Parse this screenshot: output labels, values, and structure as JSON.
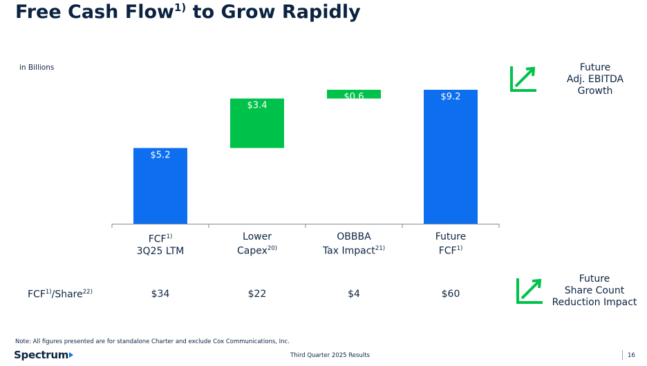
{
  "header": {
    "title_main": "Free Cash Flow",
    "title_sup": "1)",
    "title_tail": " to Grow Rapidly"
  },
  "unit_label": "in Billions",
  "chart_data": {
    "type": "bar",
    "subtype": "waterfall",
    "title": "Free Cash Flow1) to Grow Rapidly",
    "unit": "in Billions",
    "categories": [
      {
        "line1": "FCF",
        "line1_sup": "1)",
        "line2": "3Q25 LTM",
        "line2_sup": ""
      },
      {
        "line1": "Lower",
        "line1_sup": "",
        "line2": "Capex",
        "line2_sup": "20)"
      },
      {
        "line1": "OBBBA",
        "line1_sup": "",
        "line2": "Tax Impact",
        "line2_sup": "21)"
      },
      {
        "line1": "Future",
        "line1_sup": "",
        "line2": "FCF",
        "line2_sup": "1)"
      }
    ],
    "bars": [
      {
        "start": 0,
        "end": 5.2,
        "label": "$5.2",
        "kind": "total"
      },
      {
        "start": 5.2,
        "end": 8.6,
        "label": "$3.4",
        "kind": "increase"
      },
      {
        "start": 8.6,
        "end": 9.2,
        "label": "$0.6",
        "kind": "increase"
      },
      {
        "start": 0,
        "end": 9.2,
        "label": "$9.2",
        "kind": "total"
      }
    ],
    "ylim": [
      0,
      9.2
    ],
    "grid": false,
    "colors": {
      "total": "#0d6ff0",
      "increase": "#00c24a",
      "label": "#ffffff",
      "axis": "#7f8a97"
    }
  },
  "per_share": {
    "label_a": "FCF",
    "label_a_sup": "1)",
    "label_b": "/Share",
    "label_b_sup": "22)",
    "values": [
      "$34",
      "$22",
      "$4",
      "$60"
    ]
  },
  "side_notes": {
    "top": {
      "line1": "Future",
      "line2": "Adj. EBITDA",
      "line3": "Growth",
      "icon": "trend-up-icon"
    },
    "bottom": {
      "line1": "Future",
      "line2": "Share Count",
      "line3": "Reduction Impact",
      "icon": "trend-up-icon"
    }
  },
  "footer": {
    "note": "Note: All figures presented are for standalone Charter and exclude Cox Communications, Inc.",
    "logo": "Spectrum",
    "center": "Third Quarter 2025 Results",
    "page": "16"
  },
  "colors": {
    "navy": "#0b2341",
    "green": "#00c24a",
    "blue": "#0d6ff0"
  }
}
